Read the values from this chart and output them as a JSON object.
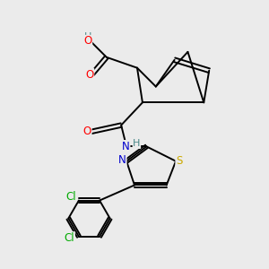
{
  "background_color": "#ebebeb",
  "atom_colors": {
    "C": "#000000",
    "O": "#ff0000",
    "N": "#0000cc",
    "S": "#ccaa00",
    "Cl": "#00aa00",
    "H": "#4a8888"
  },
  "figsize": [
    3.0,
    3.0
  ],
  "dpi": 100,
  "lw": 1.4,
  "fontsize": 8.5
}
